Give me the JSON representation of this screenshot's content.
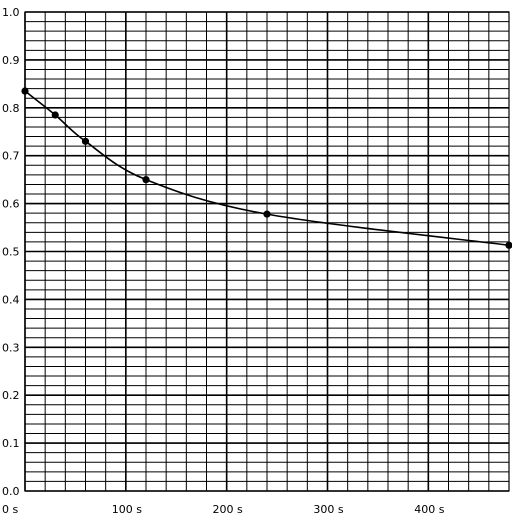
{
  "chart_data": {
    "type": "line",
    "title": "",
    "xlabel": "",
    "ylabel": "",
    "xlim": [
      0,
      480
    ],
    "ylim": [
      0,
      1.0
    ],
    "x_major_ticks": [
      0,
      100,
      200,
      300,
      400
    ],
    "x_minor_step": 20,
    "x_tick_labels": [
      "0 s",
      "100 s",
      "200 s",
      "300 s",
      "400 s"
    ],
    "y_major_ticks": [
      0,
      0.1,
      0.2,
      0.3,
      0.4,
      0.5,
      0.6,
      0.7,
      0.8,
      0.9,
      1.0
    ],
    "y_minor_step": 0.02,
    "y_tick_labels": [
      "0.0",
      "0.1",
      "0.2",
      "0.3",
      "0.4",
      "0.5",
      "0.6",
      "0.7",
      "0.8",
      "0.9",
      "1.0"
    ],
    "grid": true,
    "colors": {
      "line": "#000000",
      "grid": "#000000",
      "background": "#ffffff"
    },
    "series": [
      {
        "x": [
          0,
          30,
          60,
          120,
          240,
          480
        ],
        "y": [
          0.835,
          0.785,
          0.73,
          0.65,
          0.578,
          0.513
        ]
      }
    ]
  }
}
